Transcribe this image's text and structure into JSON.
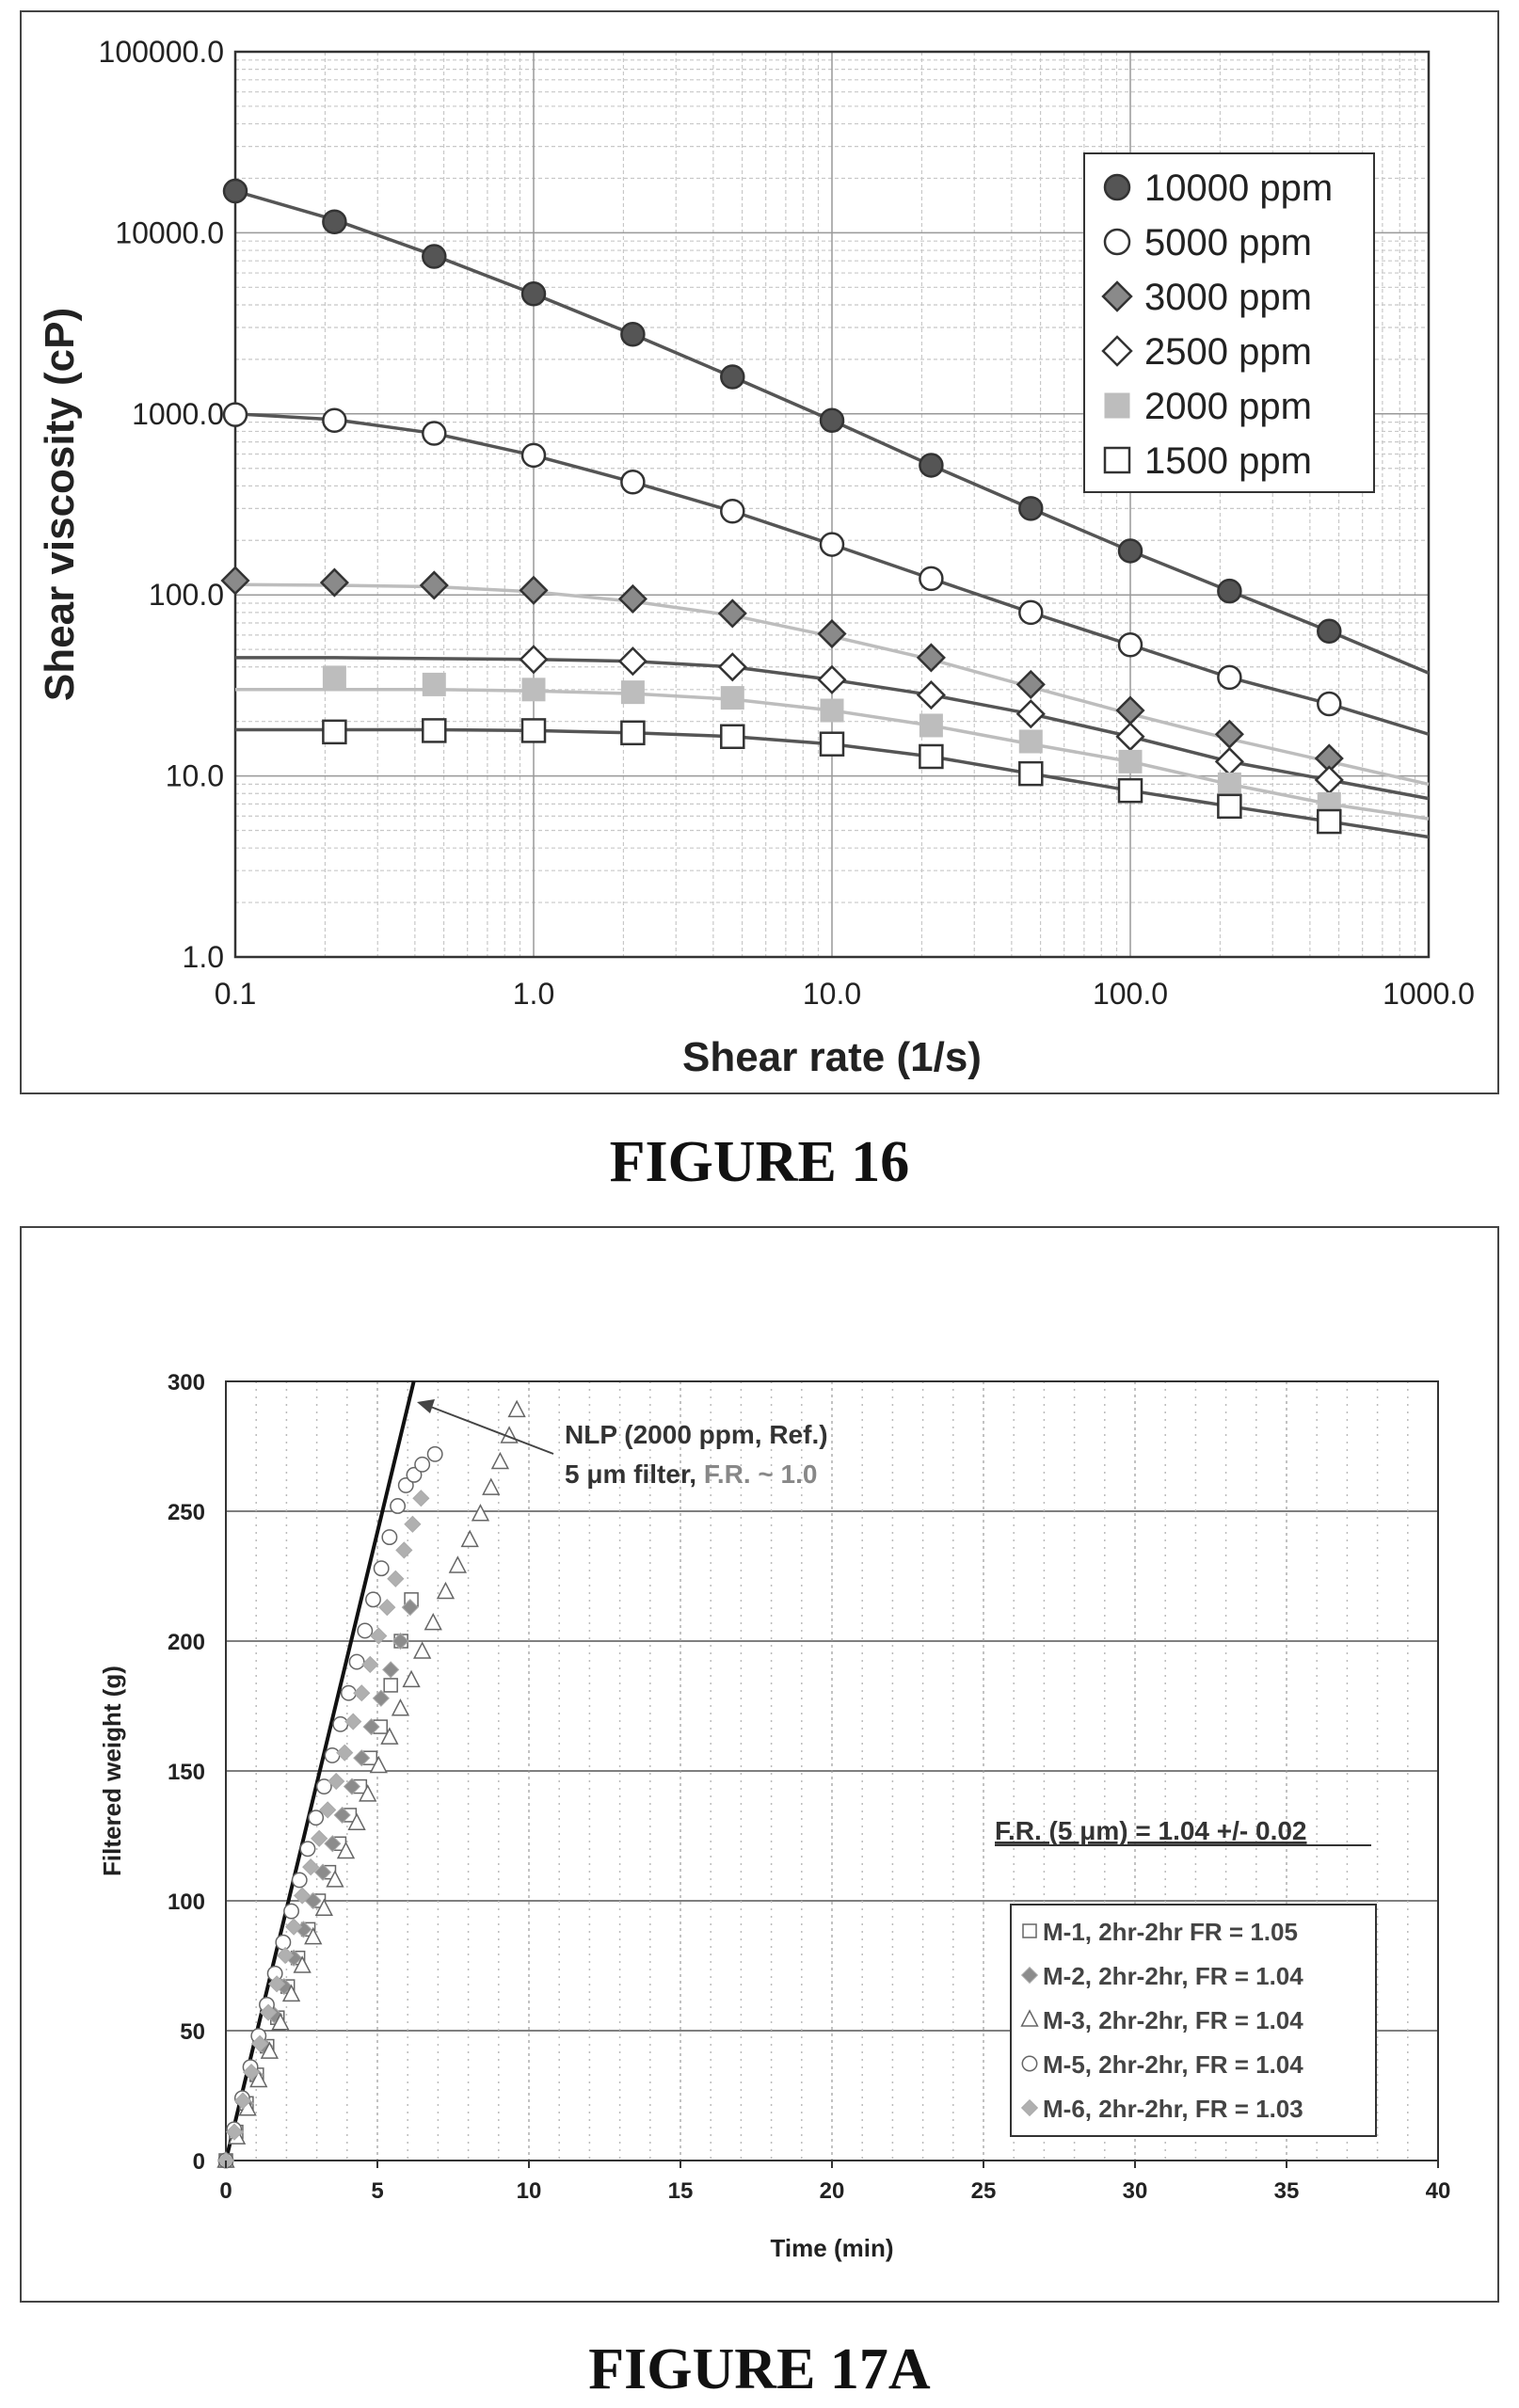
{
  "figures": [
    {
      "caption": "FIGURE 16"
    },
    {
      "caption": "FIGURE 17A"
    }
  ],
  "chart_data": [
    {
      "type": "scatter",
      "title": "",
      "xlabel": "Shear rate (1/s)",
      "ylabel": "Shear viscosity (cP)",
      "xscale": "log",
      "yscale": "log",
      "xlim": [
        0.1,
        1000
      ],
      "ylim": [
        1,
        100000
      ],
      "xticks": [
        0.1,
        1,
        10,
        100,
        1000
      ],
      "xtick_labels": [
        "0.1",
        "1.0",
        "10.0",
        "100.0",
        "1000.0"
      ],
      "yticks": [
        1,
        10,
        100,
        1000,
        10000,
        100000
      ],
      "ytick_labels": [
        "1.0",
        "10.0",
        "100.0",
        "1000.0",
        "10000.0",
        "100000.0"
      ],
      "grid": true,
      "legend_position": "top-right",
      "colors": {
        "dark": "#555555",
        "mid": "#8a8a8a",
        "light": "#bdbdbd",
        "grid": "#c8c8c8"
      },
      "x": [
        0.1,
        0.215,
        0.464,
        1.0,
        2.15,
        4.64,
        10.0,
        21.5,
        46.4,
        100,
        215,
        464
      ],
      "series": [
        {
          "name": "10000 ppm",
          "marker": "filled-circle",
          "values": [
            17000,
            11500,
            7400,
            4600,
            2750,
            1600,
            920,
            520,
            300,
            175,
            105,
            63
          ],
          "fit_x": [
            0.1,
            0.215,
            0.464,
            1.0,
            2.15,
            4.64,
            10.0,
            21.5,
            46.4,
            100,
            215,
            464,
            1000
          ],
          "fit_y": [
            17000,
            11800,
            7500,
            4600,
            2750,
            1600,
            920,
            520,
            300,
            175,
            105,
            63,
            37
          ]
        },
        {
          "name": "5000 ppm",
          "marker": "open-circle",
          "values": [
            990,
            920,
            780,
            590,
            420,
            290,
            190,
            123,
            80,
            53,
            35,
            25
          ],
          "fit_x": [
            0.1,
            0.215,
            0.464,
            1.0,
            2.15,
            4.64,
            10.0,
            21.5,
            46.4,
            100,
            215,
            464,
            1000
          ],
          "fit_y": [
            1000,
            930,
            780,
            590,
            420,
            290,
            190,
            123,
            80,
            53,
            35,
            25,
            17
          ]
        },
        {
          "name": "3000 ppm",
          "marker": "filled-diamond",
          "values": [
            120,
            117,
            113,
            106,
            95,
            79,
            61,
            45,
            32,
            23,
            17,
            12.5
          ],
          "fit_x": [
            0.1,
            0.215,
            0.464,
            1.0,
            2.15,
            4.64,
            10.0,
            21.5,
            46.4,
            100,
            215,
            464,
            1000
          ],
          "fit_y": [
            114,
            113,
            111,
            104,
            92,
            77,
            59,
            44,
            31,
            22,
            16,
            12,
            9
          ]
        },
        {
          "name": "2500 ppm",
          "marker": "open-diamond",
          "values": [
            null,
            null,
            null,
            44,
            43,
            40,
            34,
            28,
            22,
            16.5,
            12,
            9.5
          ],
          "fit_x": [
            0.1,
            0.215,
            0.464,
            1.0,
            2.15,
            4.64,
            10.0,
            21.5,
            46.4,
            100,
            215,
            464,
            1000
          ],
          "fit_y": [
            45,
            45,
            44.5,
            44,
            43,
            40,
            34,
            28,
            22,
            16.5,
            12,
            9.5,
            7.5
          ]
        },
        {
          "name": "2000 ppm",
          "marker": "filled-square",
          "values": [
            null,
            35,
            32,
            30,
            29,
            27,
            23,
            19,
            15.5,
            12,
            9,
            7
          ],
          "fit_x": [
            0.1,
            0.215,
            0.464,
            1.0,
            2.15,
            4.64,
            10.0,
            21.5,
            46.4,
            100,
            215,
            464,
            1000
          ],
          "fit_y": [
            30,
            30,
            30,
            29.5,
            28.5,
            26.5,
            23,
            19,
            15,
            12,
            9,
            7,
            5.8
          ]
        },
        {
          "name": "1500 ppm",
          "marker": "open-square",
          "values": [
            null,
            17.5,
            17.8,
            17.8,
            17.3,
            16.5,
            15,
            12.8,
            10.3,
            8.3,
            6.8,
            5.6
          ],
          "fit_x": [
            0.1,
            0.215,
            0.464,
            1.0,
            2.15,
            4.64,
            10.0,
            21.5,
            46.4,
            100,
            215,
            464,
            1000
          ],
          "fit_y": [
            18,
            18,
            18,
            17.8,
            17.3,
            16.5,
            15,
            12.8,
            10.3,
            8.3,
            6.8,
            5.6,
            4.6
          ]
        }
      ]
    },
    {
      "type": "scatter",
      "title": "",
      "xlabel": "Time (min)",
      "ylabel": "Filtered weight (g)",
      "xlim": [
        0,
        40
      ],
      "ylim": [
        0,
        300
      ],
      "xticks": [
        0,
        5,
        10,
        15,
        20,
        25,
        30,
        35,
        40
      ],
      "yticks": [
        0,
        50,
        100,
        150,
        200,
        250,
        300
      ],
      "grid": true,
      "legend_position": "bottom-right",
      "reference_line": {
        "x": [
          0,
          6.2
        ],
        "y": [
          0,
          300
        ]
      },
      "annotation": {
        "line1": "NLP (2000 ppm, Ref.)",
        "line2a": "5 μm filter, ",
        "line2b": "F.R. ~ 1.0"
      },
      "summary_label": "F.R. (5 μm) = 1.04 +/- 0.02",
      "series": [
        {
          "name": "M-1, 2hr-2hr FR = 1.05",
          "marker": "open-square",
          "x": [
            0,
            0.34,
            0.68,
            1.02,
            1.36,
            1.7,
            2.04,
            2.38,
            2.72,
            3.06,
            3.4,
            3.74,
            4.08,
            4.42,
            4.76,
            5.1,
            5.44,
            5.78,
            6.12
          ],
          "y": [
            0,
            11,
            22,
            33,
            44,
            55,
            67,
            78,
            89,
            100,
            111,
            122,
            133,
            144,
            155,
            167,
            183,
            200,
            216
          ]
        },
        {
          "name": "M-2, 2hr-2hr, FR = 1.04",
          "marker": "filled-diamond",
          "x": [
            0,
            0.32,
            0.64,
            0.96,
            1.28,
            1.6,
            1.92,
            2.24,
            2.56,
            2.88,
            3.2,
            3.52,
            3.84,
            4.16,
            4.48,
            4.8,
            5.12,
            5.44,
            5.76,
            6.08
          ],
          "y": [
            0,
            11,
            22,
            33,
            44,
            56,
            67,
            78,
            89,
            100,
            111,
            122,
            133,
            144,
            155,
            167,
            178,
            189,
            200,
            213
          ]
        },
        {
          "name": "M-3, 2hr-2hr, FR = 1.04",
          "marker": "open-triangle",
          "x": [
            0,
            0.36,
            0.72,
            1.08,
            1.44,
            1.8,
            2.16,
            2.52,
            2.88,
            3.24,
            3.6,
            3.96,
            4.32,
            4.68,
            5.04,
            5.4,
            5.76,
            6.12,
            6.48,
            6.84,
            7.25,
            7.65,
            8.05,
            8.4,
            8.75,
            9.05,
            9.35,
            9.6
          ],
          "y": [
            0,
            9,
            20,
            31,
            42,
            53,
            64,
            75,
            86,
            97,
            108,
            119,
            130,
            141,
            152,
            163,
            174,
            185,
            196,
            207,
            219,
            229,
            239,
            249,
            259,
            269,
            279,
            289
          ]
        },
        {
          "name": "M-5, 2hr-2hr, FR = 1.04",
          "marker": "open-circle",
          "x": [
            0,
            0.27,
            0.54,
            0.81,
            1.08,
            1.35,
            1.62,
            1.89,
            2.16,
            2.43,
            2.7,
            2.97,
            3.24,
            3.51,
            3.78,
            4.05,
            4.32,
            4.59,
            4.86,
            5.13,
            5.4,
            5.67,
            5.94,
            6.21,
            6.48,
            6.9
          ],
          "y": [
            0,
            12,
            24,
            36,
            48,
            60,
            72,
            84,
            96,
            108,
            120,
            132,
            144,
            156,
            168,
            180,
            192,
            204,
            216,
            228,
            240,
            252,
            260,
            264,
            268,
            272
          ]
        },
        {
          "name": "M-6, 2hr-2hr, FR = 1.03",
          "marker": "filled-diamond",
          "x": [
            0,
            0.28,
            0.56,
            0.84,
            1.12,
            1.4,
            1.68,
            1.96,
            2.24,
            2.52,
            2.8,
            3.08,
            3.36,
            3.64,
            3.92,
            4.2,
            4.48,
            4.76,
            5.04,
            5.32,
            5.6,
            5.88,
            6.16,
            6.44
          ],
          "y": [
            0,
            11,
            23,
            34,
            45,
            57,
            68,
            79,
            90,
            102,
            113,
            124,
            135,
            146,
            157,
            169,
            180,
            191,
            202,
            213,
            224,
            235,
            245,
            255
          ]
        }
      ]
    }
  ]
}
